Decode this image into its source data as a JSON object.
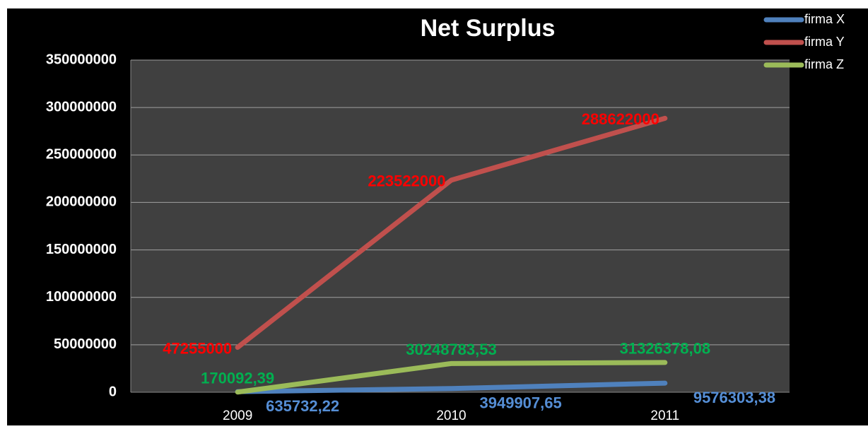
{
  "chart_data": {
    "type": "line",
    "title": "Net Surplus",
    "categories": [
      "2009",
      "2010",
      "2011"
    ],
    "series": [
      {
        "name": "firma X",
        "color": "#4f81bd",
        "label_color": "#558ed5",
        "values": [
          635732.22,
          3949907.65,
          9576303.38
        ],
        "value_labels": [
          "635732,22",
          "3949907,65",
          "9576303,38"
        ]
      },
      {
        "name": "firma Y",
        "color": "#c0504d",
        "label_color": "#ff0000",
        "values": [
          47255000,
          223522000,
          288622000
        ]
      },
      {
        "name": "firma Z",
        "color": "#9bbb59",
        "label_color": "#00b050",
        "values": [
          170092.39,
          30248783.53,
          31326378.08
        ],
        "value_labels": [
          "170092,39",
          "30248783,53",
          "31326378,08"
        ]
      }
    ],
    "ylim": [
      0,
      350000000
    ],
    "yticks": [
      0,
      50000000,
      100000000,
      150000000,
      200000000,
      250000000,
      300000000,
      350000000
    ],
    "grid": true,
    "legend": "top-right"
  }
}
